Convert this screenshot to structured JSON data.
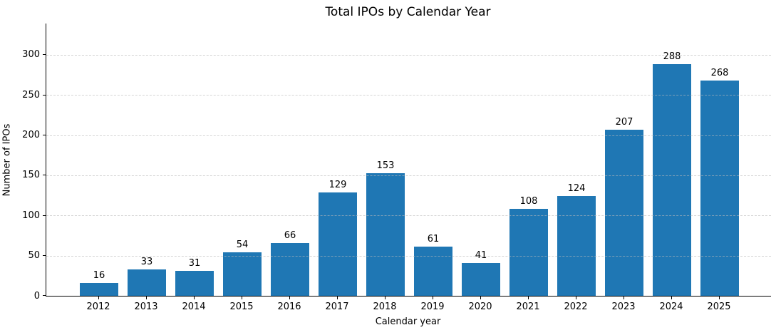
{
  "chart_data": {
    "type": "bar",
    "title": "Total IPOs by Calendar Year",
    "xlabel": "Calendar year",
    "ylabel": "Number of IPOs",
    "categories": [
      "2012",
      "2013",
      "2014",
      "2015",
      "2016",
      "2017",
      "2018",
      "2019",
      "2020",
      "2021",
      "2022",
      "2023",
      "2024",
      "2025"
    ],
    "values": [
      16,
      33,
      31,
      54,
      66,
      129,
      153,
      61,
      41,
      108,
      124,
      207,
      288,
      268
    ],
    "ylim": [
      0,
      339
    ],
    "yticks": [
      0,
      50,
      100,
      150,
      200,
      250,
      300
    ],
    "grid": "horizontal-dashed",
    "legend": "none",
    "bar_color": "#1f77b4",
    "grid_color": "#d9d9d9",
    "text_color": "#000000"
  }
}
